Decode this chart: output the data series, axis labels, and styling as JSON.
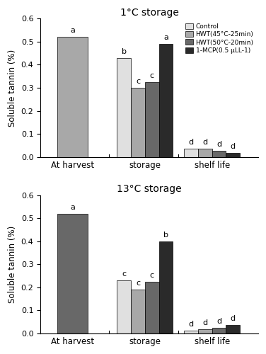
{
  "title_top": "1°C storage",
  "title_bottom": "13°C storage",
  "ylabel": "Soluble tannin (%)",
  "categories": [
    "At harvest",
    "storage",
    "shelf life"
  ],
  "legend_labels": [
    "Control",
    "HWT(45°C-25min)",
    "HWT(50°C-20min)",
    "1-MCP(0.5 μLL-1)"
  ],
  "colors": [
    "#e0e0e0",
    "#a8a8a8",
    "#686868",
    "#2a2a2a"
  ],
  "top_data": [
    [
      null,
      0.52,
      null,
      null
    ],
    [
      0.43,
      0.3,
      0.325,
      0.49
    ],
    [
      0.035,
      0.035,
      0.027,
      0.018
    ]
  ],
  "top_labels": [
    [
      null,
      "a",
      null,
      null
    ],
    [
      "b",
      "c",
      "c",
      "a"
    ],
    [
      "d",
      "d",
      "d",
      "d"
    ]
  ],
  "bottom_data": [
    [
      null,
      0.52,
      null,
      null
    ],
    [
      0.23,
      0.19,
      0.225,
      0.4
    ],
    [
      0.012,
      0.018,
      0.025,
      0.038
    ]
  ],
  "bottom_labels": [
    [
      null,
      "a",
      null,
      null
    ],
    [
      "c",
      "c",
      "c",
      "b"
    ],
    [
      "d",
      "d",
      "d",
      "d"
    ]
  ],
  "harvest_bar_color_top": "#a8a8a8",
  "harvest_bar_color_bottom": "#686868",
  "ylim": [
    0,
    0.6
  ],
  "yticks": [
    0.0,
    0.1,
    0.2,
    0.3,
    0.4,
    0.5,
    0.6
  ],
  "group_positions": [
    0.22,
    1.05,
    1.82
  ],
  "bar_width": 0.16,
  "xlim": [
    -0.15,
    2.35
  ]
}
